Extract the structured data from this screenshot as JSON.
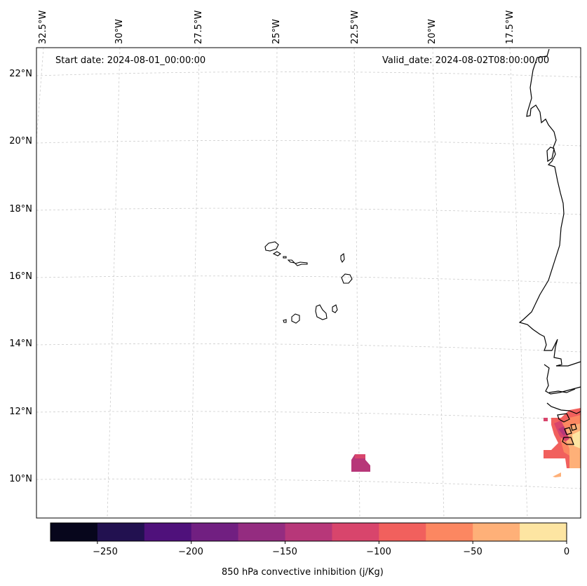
{
  "header": {
    "start_date": "Start date: 2024-08-01_00:00:00",
    "valid_date": "Valid_date: 2024-08-02T08:00:00.00"
  },
  "axes": {
    "longitude_labels": [
      "32.5°W",
      "30°W",
      "27.5°W",
      "25°W",
      "22.5°W",
      "20°W",
      "17.5°W"
    ],
    "latitude_labels": [
      "22°N",
      "20°N",
      "18°N",
      "16°N",
      "14°N",
      "12°N",
      "10°N"
    ]
  },
  "colorbar": {
    "label": "850 hPa convective inhibition (j/Kg)",
    "tick_labels": [
      "−250",
      "−200",
      "−150",
      "−100",
      "−50",
      "0"
    ],
    "min": -275,
    "max": 0,
    "levels": [
      -275,
      -250,
      -225,
      -200,
      -175,
      -150,
      -125,
      -100,
      -75,
      -50,
      -25,
      0
    ],
    "colors": [
      "#07061c",
      "#221150",
      "#4f117b",
      "#711f81",
      "#942c80",
      "#b73779",
      "#d8456c",
      "#f1605d",
      "#fc8761",
      "#feb078",
      "#fde5a2"
    ]
  },
  "colors": {
    "grid": "#cccccc",
    "coast": "#000000"
  }
}
